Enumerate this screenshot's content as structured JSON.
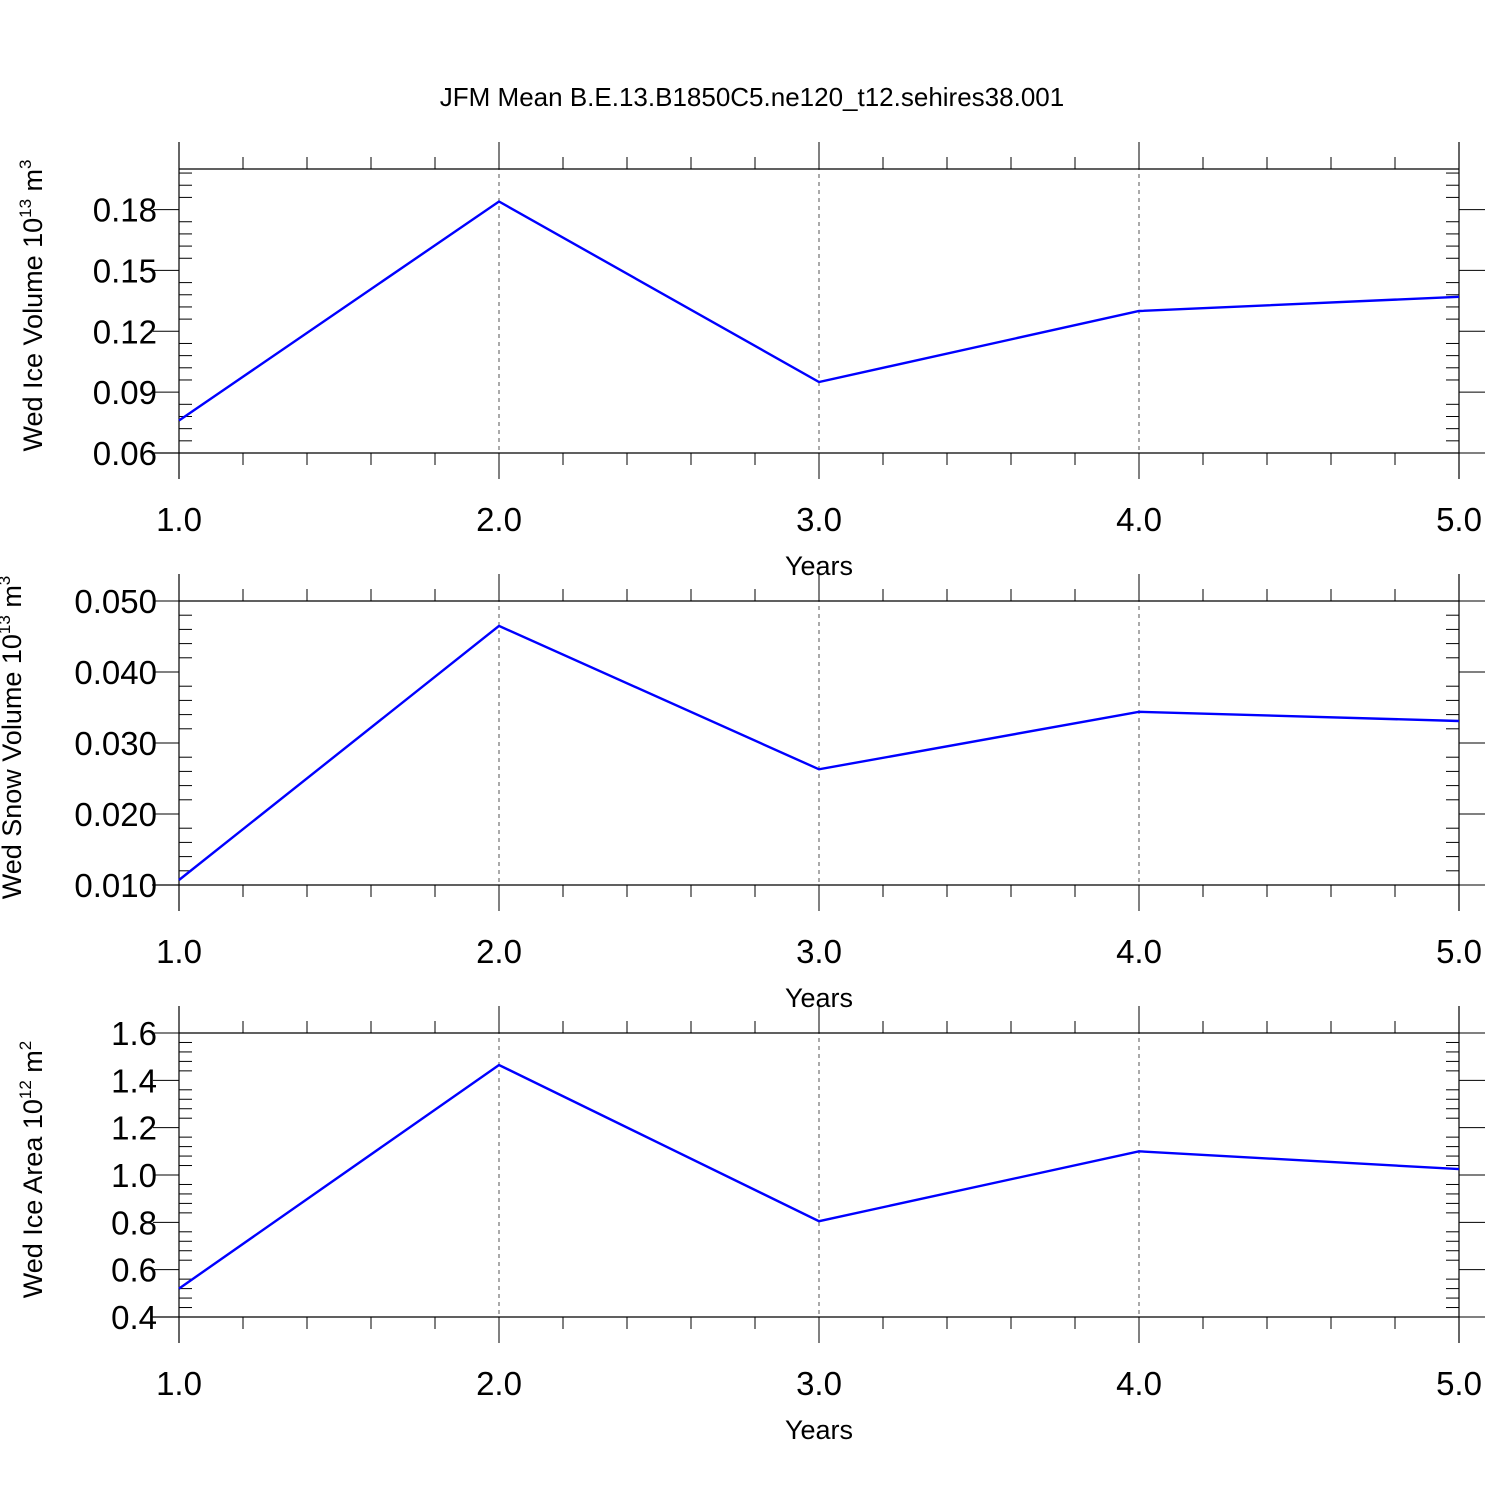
{
  "title": "JFM Mean B.E.13.B1850C5.ne120_t12.sehires38.001",
  "colors": {
    "series": "#0000ff",
    "axis": "#000000",
    "grid": "#555555"
  },
  "chart_data": [
    {
      "type": "line",
      "title": "",
      "xlabel": "Years",
      "ylabel": "Wed Ice Volume 10",
      "ylabel_exp": "13",
      "ylabel_unit": " m",
      "ylabel_unit_exp": "3",
      "xlim": [
        1.0,
        5.0
      ],
      "ylim": [
        0.06,
        0.2
      ],
      "x_ticks": [
        "1.0",
        "2.0",
        "3.0",
        "4.0",
        "5.0"
      ],
      "y_ticks": [
        "0.06",
        "0.09",
        "0.12",
        "0.15",
        "0.18"
      ],
      "grid": "vertical dashed",
      "series": [
        {
          "x": [
            1.0,
            2.0,
            3.0,
            4.0,
            5.0
          ],
          "values": [
            0.076,
            0.184,
            0.095,
            0.13,
            0.137
          ]
        }
      ]
    },
    {
      "type": "line",
      "title": "",
      "xlabel": "Years",
      "ylabel": "Wed Snow Volume 10",
      "ylabel_exp": "13",
      "ylabel_unit": " m",
      "ylabel_unit_exp": "3",
      "xlim": [
        1.0,
        5.0
      ],
      "ylim": [
        0.01,
        0.05
      ],
      "x_ticks": [
        "1.0",
        "2.0",
        "3.0",
        "4.0",
        "5.0"
      ],
      "y_ticks": [
        "0.010",
        "0.020",
        "0.030",
        "0.040",
        "0.050"
      ],
      "grid": "vertical dashed",
      "series": [
        {
          "x": [
            1.0,
            2.0,
            3.0,
            4.0,
            5.0
          ],
          "values": [
            0.0107,
            0.0465,
            0.0263,
            0.0344,
            0.0331
          ]
        }
      ]
    },
    {
      "type": "line",
      "title": "",
      "xlabel": "Years",
      "ylabel": "Wed Ice Area 10",
      "ylabel_exp": "12",
      "ylabel_unit": " m",
      "ylabel_unit_exp": "2",
      "xlim": [
        1.0,
        5.0
      ],
      "ylim": [
        0.4,
        1.6
      ],
      "x_ticks": [
        "1.0",
        "2.0",
        "3.0",
        "4.0",
        "5.0"
      ],
      "y_ticks": [
        "0.4",
        "0.6",
        "0.8",
        "1.0",
        "1.2",
        "1.4",
        "1.6"
      ],
      "grid": "vertical dashed",
      "series": [
        {
          "x": [
            1.0,
            2.0,
            3.0,
            4.0,
            5.0
          ],
          "values": [
            0.52,
            1.465,
            0.805,
            1.1,
            1.025
          ]
        }
      ]
    }
  ]
}
